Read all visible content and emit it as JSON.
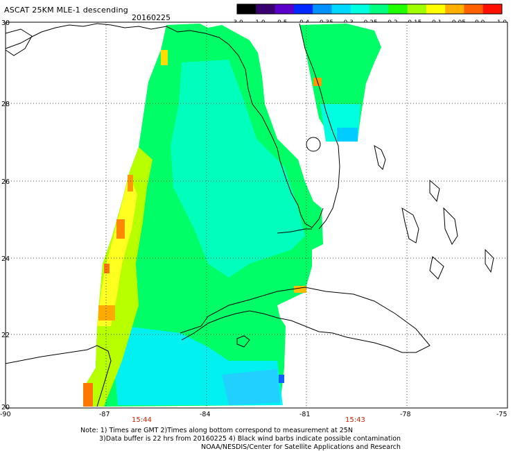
{
  "header": {
    "title": "ASCAT 25KM MLE-1 descending",
    "date": "20160225"
  },
  "colorbar": {
    "colors": [
      "#000000",
      "#3a0070",
      "#5a00c8",
      "#0028ff",
      "#0090ff",
      "#00d8ff",
      "#00ffe0",
      "#00ff80",
      "#20ff00",
      "#a0ff00",
      "#ffff00",
      "#ffb000",
      "#ff6000",
      "#ff1000"
    ],
    "labels": [
      "-3.0",
      "-1.0",
      "-0.5",
      "-0.4",
      "-0.35",
      "-0.3",
      "-0.25",
      "-0.2",
      "-0.15",
      "-0.1",
      "-0.05",
      "0.0",
      "1.0"
    ]
  },
  "axes": {
    "lat_labels": [
      "30",
      "28",
      "26",
      "24",
      "22",
      "20"
    ],
    "lon_labels": [
      "-90",
      "-87",
      "-84",
      "-81",
      "-78",
      "-75"
    ]
  },
  "times": {
    "left": "15:44",
    "right": "15:43"
  },
  "notes": {
    "line1": "Note: 1) Times are GMT 2)Times along bottom correspond to measurement at 25N",
    "line2": "3)Data buffer is 22 hrs from 20160225 4) Black wind barbs indicate possible contamination",
    "line3": "NOAA/NESDIS/Center for Satellite Applications and Research"
  }
}
